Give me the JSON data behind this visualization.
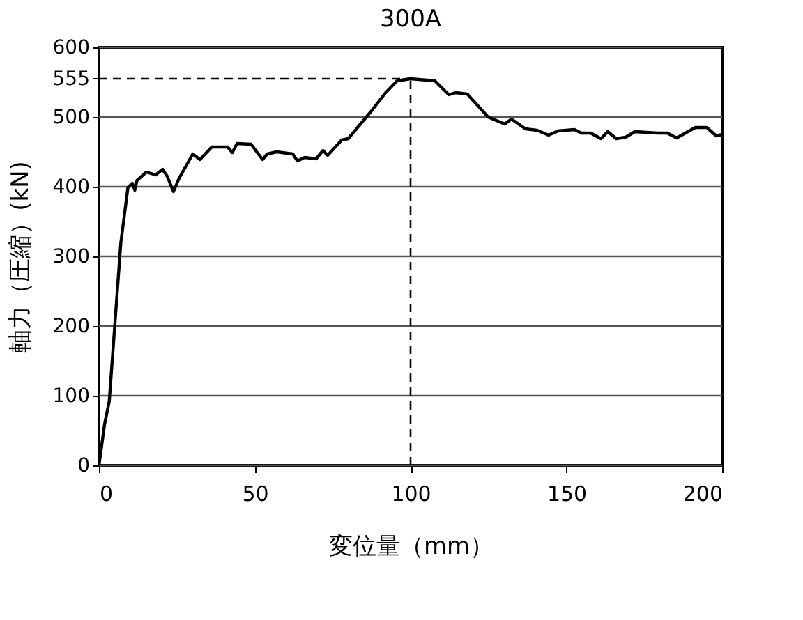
{
  "chart_data": {
    "type": "line",
    "title": "300A",
    "xlabel": "変位量（mm）",
    "ylabel": "軸力（圧縮）(kN)",
    "series": [
      {
        "color": "#000000",
        "x": [
          0,
          1.8,
          3.3,
          7,
          9.3,
          10.7,
          11.5,
          12.2,
          15.2,
          18.2,
          20.4,
          21.9,
          23.9,
          25.7,
          30.1,
          32.4,
          36.2,
          41.3,
          42.8,
          44.3,
          48.8,
          50.3,
          52.5,
          54,
          57,
          62.2,
          63.7,
          66,
          69.7,
          71.9,
          73.4,
          77.9,
          80,
          83,
          87.5,
          92,
          95.7,
          100,
          107.8,
          112.3,
          114.5,
          118.2,
          124.9,
          130.2,
          132.4,
          136.9,
          140.6,
          144.3,
          147.3,
          152.6,
          154.8,
          157.8,
          161.1,
          163.3,
          166,
          169,
          172,
          179.4,
          182.4,
          185.4,
          191.4,
          195.1,
          198.1,
          200
        ],
        "values": [
          0,
          59,
          92,
          319,
          399,
          405,
          395,
          409,
          421,
          417,
          425,
          415,
          393,
          412,
          447,
          439,
          457,
          457,
          449,
          462,
          461,
          452,
          439,
          447,
          450,
          447,
          437,
          442,
          440,
          452,
          445,
          467,
          469,
          485,
          509,
          535,
          552,
          555,
          552,
          532,
          535,
          533,
          500,
          490,
          497,
          483,
          481,
          474,
          480,
          482,
          477,
          477,
          469,
          479,
          469,
          471,
          479,
          477,
          477,
          470,
          485,
          485,
          473,
          475
        ]
      }
    ],
    "xlim": [
      0,
      200
    ],
    "xticks": [
      0,
      50,
      100,
      150,
      200
    ],
    "ylim": [
      0,
      600
    ],
    "yticks": [
      0,
      100,
      200,
      300,
      400,
      500,
      555,
      600
    ],
    "grid": "y",
    "marker": "none",
    "line_style": "solid",
    "ref_lines": [
      {
        "axis": "y",
        "value": 555,
        "line_style": "dashed"
      },
      {
        "axis": "x",
        "value": 100,
        "line_style": "dashed"
      }
    ]
  }
}
